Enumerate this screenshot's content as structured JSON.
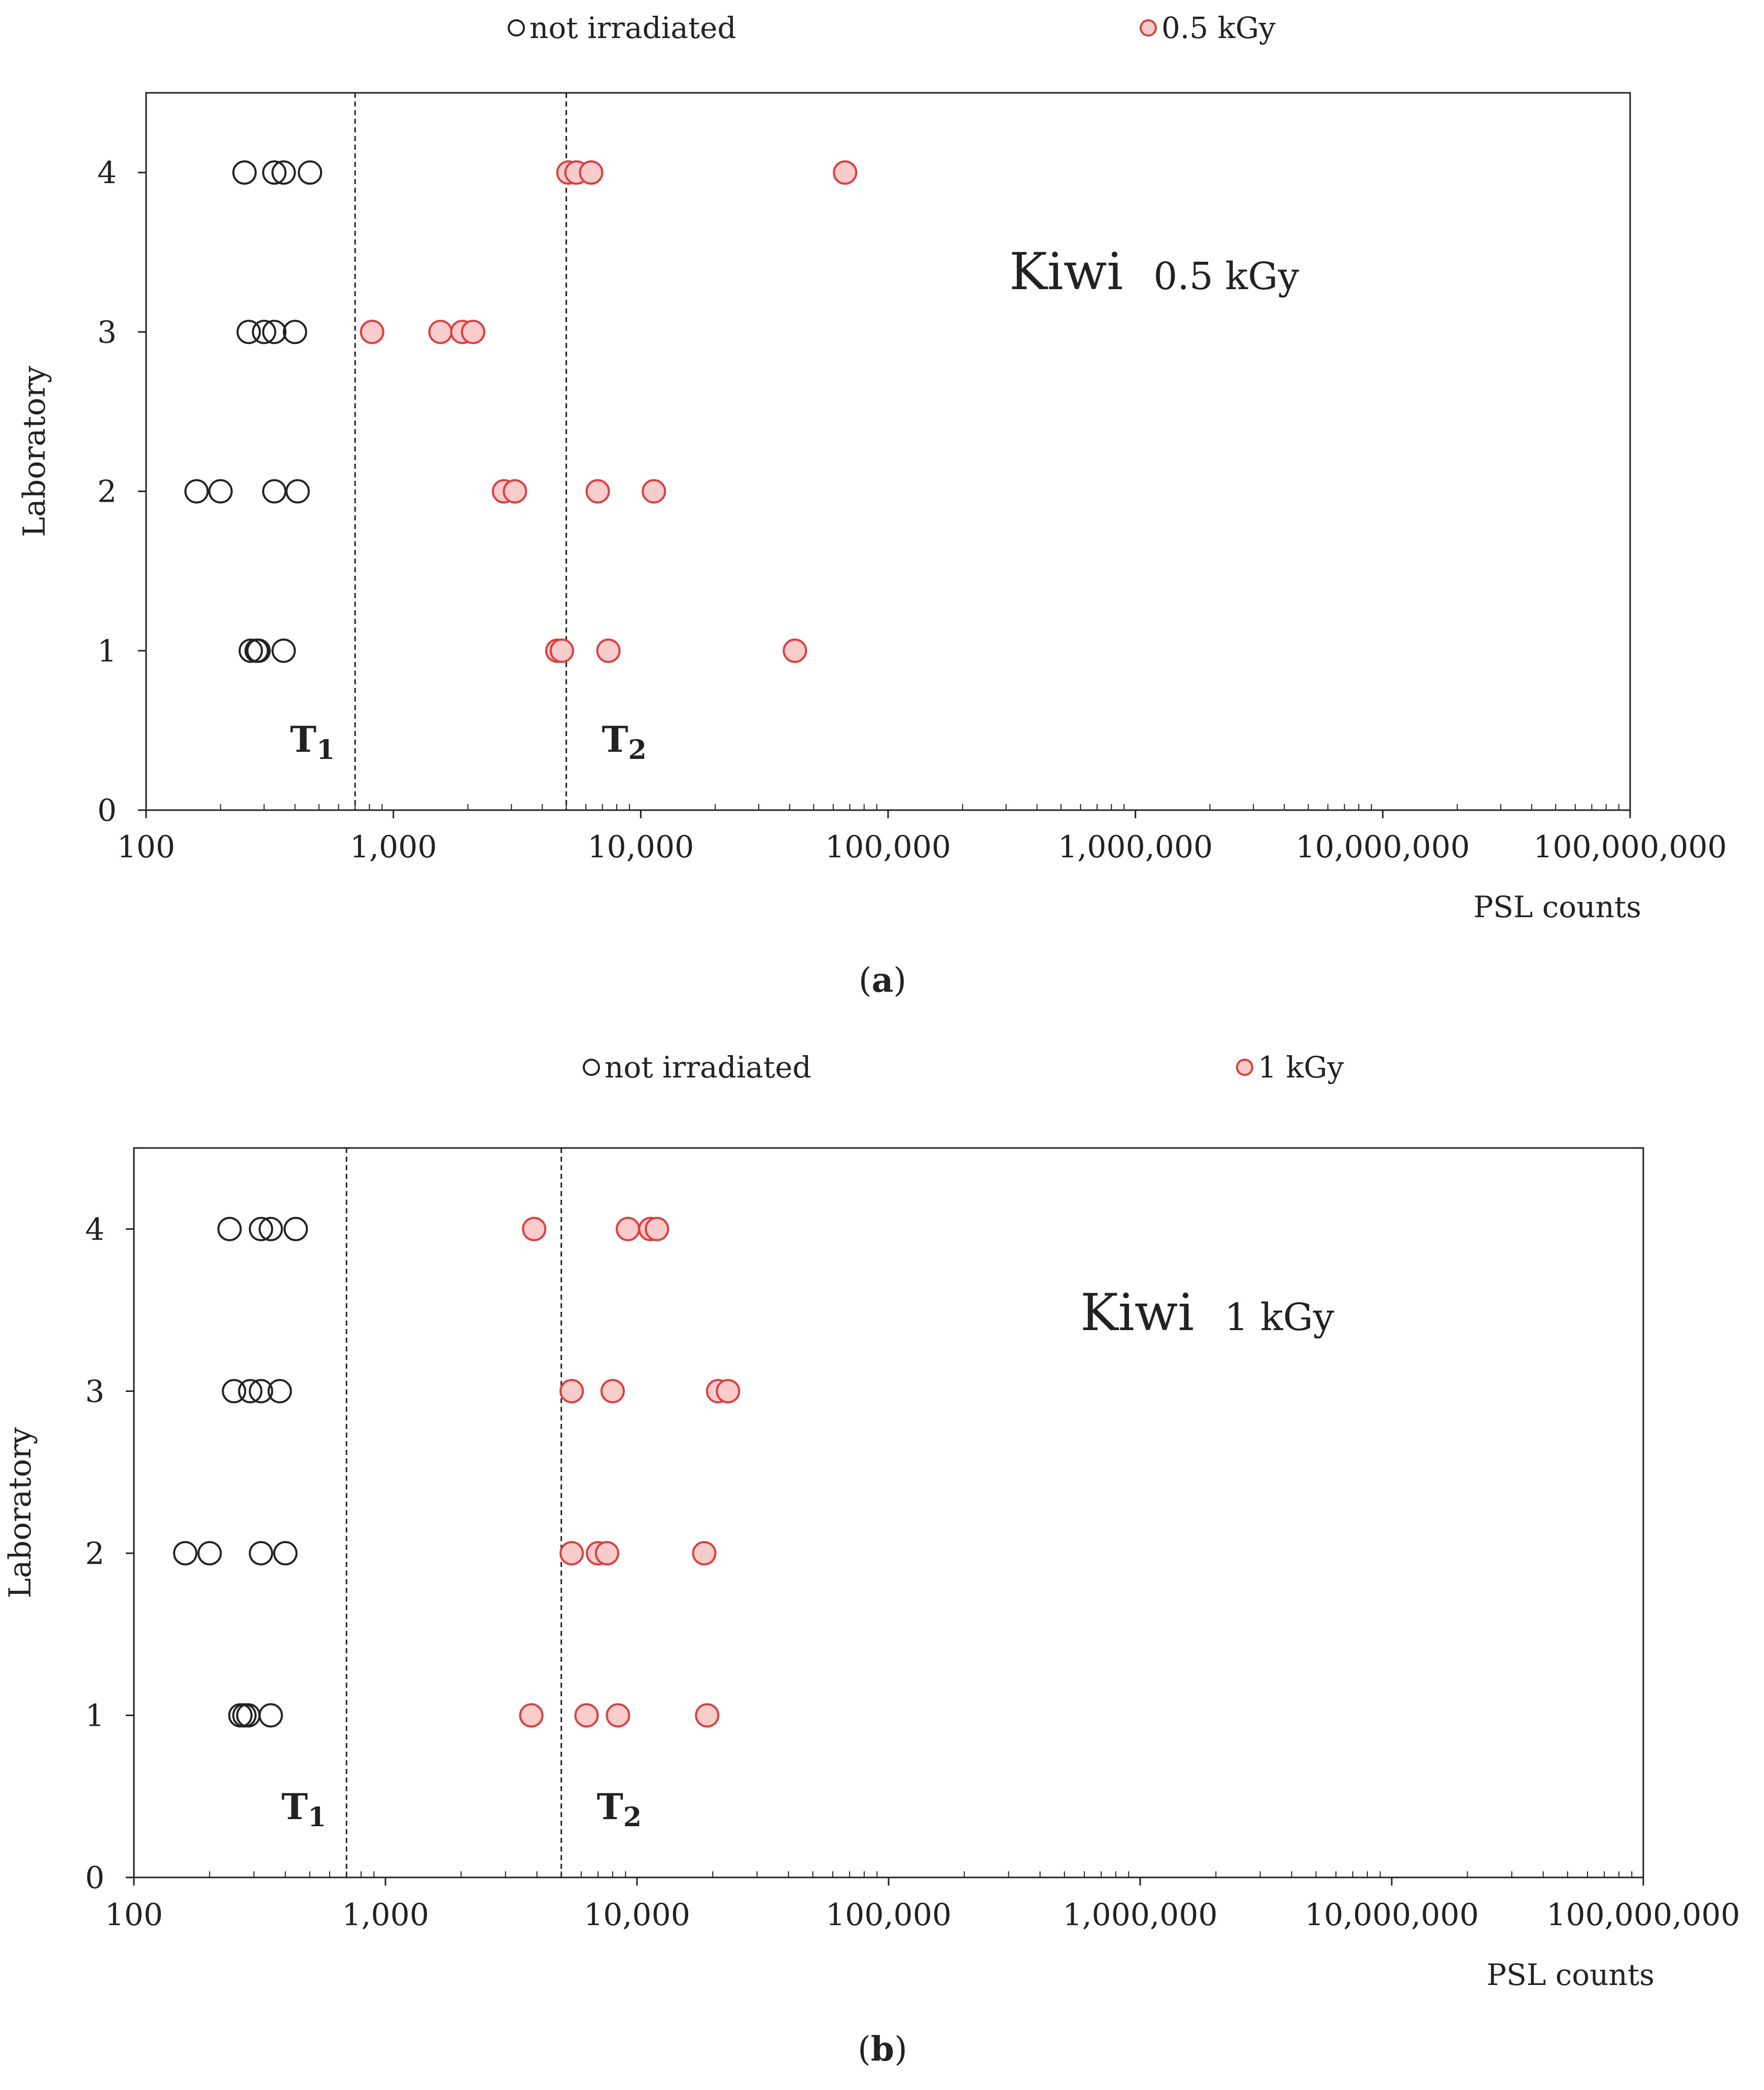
{
  "chart_data": [
    {
      "id": "a",
      "type": "scatter",
      "caption": "a",
      "legend": {
        "placement": "top",
        "entries": [
          {
            "key": "not_irradiated",
            "label": "not irradiated",
            "color": "#222222",
            "fill": "none"
          },
          {
            "key": "irradiated",
            "label": "0.5 kGy",
            "color": "#e23b3b",
            "fill": "#f9cccc"
          }
        ]
      },
      "annotation": {
        "product": "Kiwi",
        "dose": "0.5 kGy"
      },
      "xlabel": "PSL counts",
      "ylabel": "Laboratory",
      "xscale": "log",
      "xlim": [
        100,
        100000000
      ],
      "ylim": [
        0,
        4.5
      ],
      "xticks": [
        100,
        1000,
        10000,
        100000,
        1000000,
        10000000,
        100000000
      ],
      "xtick_labels": [
        "100",
        "1,000",
        "10,000",
        "100,000",
        "1,000,000",
        "10,000,000",
        "100,000,000"
      ],
      "yticks": [
        0,
        1,
        2,
        3,
        4
      ],
      "ytick_labels": [
        "0",
        "1",
        "2",
        "3",
        "4"
      ],
      "thresholds": [
        {
          "name": "T",
          "sub": "1",
          "x": 700
        },
        {
          "name": "T",
          "sub": "2",
          "x": 5000
        }
      ],
      "series": [
        {
          "name": "not irradiated",
          "points": [
            {
              "lab": 4,
              "x": 250
            },
            {
              "lab": 4,
              "x": 330
            },
            {
              "lab": 4,
              "x": 360
            },
            {
              "lab": 4,
              "x": 460
            },
            {
              "lab": 3,
              "x": 260
            },
            {
              "lab": 3,
              "x": 300
            },
            {
              "lab": 3,
              "x": 330
            },
            {
              "lab": 3,
              "x": 400
            },
            {
              "lab": 2,
              "x": 160
            },
            {
              "lab": 2,
              "x": 200
            },
            {
              "lab": 2,
              "x": 330
            },
            {
              "lab": 2,
              "x": 410
            },
            {
              "lab": 1,
              "x": 265
            },
            {
              "lab": 1,
              "x": 280
            },
            {
              "lab": 1,
              "x": 285
            },
            {
              "lab": 1,
              "x": 360
            }
          ]
        },
        {
          "name": "0.5 kGy",
          "points": [
            {
              "lab": 4,
              "x": 5100
            },
            {
              "lab": 4,
              "x": 5500
            },
            {
              "lab": 4,
              "x": 6300
            },
            {
              "lab": 4,
              "x": 67000
            },
            {
              "lab": 3,
              "x": 820
            },
            {
              "lab": 3,
              "x": 1550
            },
            {
              "lab": 3,
              "x": 1900
            },
            {
              "lab": 3,
              "x": 2100
            },
            {
              "lab": 2,
              "x": 2800
            },
            {
              "lab": 2,
              "x": 3100
            },
            {
              "lab": 2,
              "x": 6700
            },
            {
              "lab": 2,
              "x": 11300
            },
            {
              "lab": 1,
              "x": 4600
            },
            {
              "lab": 1,
              "x": 4800
            },
            {
              "lab": 1,
              "x": 7400
            },
            {
              "lab": 1,
              "x": 42000
            }
          ]
        }
      ]
    },
    {
      "id": "b",
      "type": "scatter",
      "caption": "b",
      "legend": {
        "placement": "top",
        "entries": [
          {
            "key": "not_irradiated",
            "label": "not irradiated",
            "color": "#222222",
            "fill": "none"
          },
          {
            "key": "irradiated",
            "label": "1 kGy",
            "color": "#e23b3b",
            "fill": "#f9cccc"
          }
        ]
      },
      "annotation": {
        "product": "Kiwi",
        "dose": "1 kGy"
      },
      "xlabel": "PSL counts",
      "ylabel": "Laboratory",
      "xscale": "log",
      "xlim": [
        100,
        100000000
      ],
      "ylim": [
        0,
        4.5
      ],
      "xticks": [
        100,
        1000,
        10000,
        100000,
        1000000,
        10000000,
        100000000
      ],
      "xtick_labels": [
        "100",
        "1,000",
        "10,000",
        "100,000",
        "1,000,000",
        "10,000,000",
        "100,000,000"
      ],
      "yticks": [
        0,
        1,
        2,
        3,
        4
      ],
      "ytick_labels": [
        "0",
        "1",
        "2",
        "3",
        "4"
      ],
      "thresholds": [
        {
          "name": "T",
          "sub": "1",
          "x": 700
        },
        {
          "name": "T",
          "sub": "2",
          "x": 5000
        }
      ],
      "series": [
        {
          "name": "not irradiated",
          "points": [
            {
              "lab": 4,
              "x": 240
            },
            {
              "lab": 4,
              "x": 320
            },
            {
              "lab": 4,
              "x": 350
            },
            {
              "lab": 4,
              "x": 440
            },
            {
              "lab": 3,
              "x": 250
            },
            {
              "lab": 3,
              "x": 290
            },
            {
              "lab": 3,
              "x": 320
            },
            {
              "lab": 3,
              "x": 380
            },
            {
              "lab": 2,
              "x": 160
            },
            {
              "lab": 2,
              "x": 200
            },
            {
              "lab": 2,
              "x": 320
            },
            {
              "lab": 2,
              "x": 400
            },
            {
              "lab": 1,
              "x": 265
            },
            {
              "lab": 1,
              "x": 275
            },
            {
              "lab": 1,
              "x": 285
            },
            {
              "lab": 1,
              "x": 350
            }
          ]
        },
        {
          "name": "1 kGy",
          "points": [
            {
              "lab": 4,
              "x": 3900
            },
            {
              "lab": 4,
              "x": 9200
            },
            {
              "lab": 4,
              "x": 11300
            },
            {
              "lab": 4,
              "x": 12000
            },
            {
              "lab": 3,
              "x": 5500
            },
            {
              "lab": 3,
              "x": 8000
            },
            {
              "lab": 3,
              "x": 21000
            },
            {
              "lab": 3,
              "x": 23000
            },
            {
              "lab": 2,
              "x": 5500
            },
            {
              "lab": 2,
              "x": 7000
            },
            {
              "lab": 2,
              "x": 7600
            },
            {
              "lab": 2,
              "x": 18500
            },
            {
              "lab": 1,
              "x": 3800
            },
            {
              "lab": 1,
              "x": 6300
            },
            {
              "lab": 1,
              "x": 8400
            },
            {
              "lab": 1,
              "x": 19000
            }
          ]
        }
      ]
    }
  ]
}
